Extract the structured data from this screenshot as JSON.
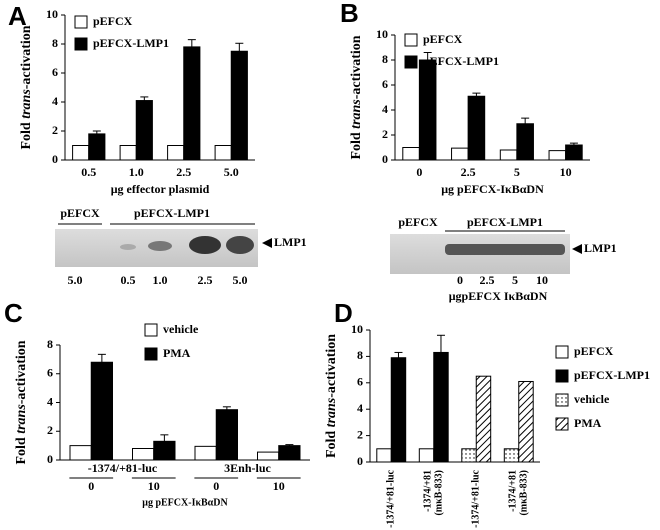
{
  "panels": [
    "A",
    "B",
    "C",
    "D"
  ],
  "chart_data": [
    {
      "type": "bar",
      "y_label": [
        "Fold ",
        "trans",
        "-activation"
      ],
      "x_label": "μg effector plasmid",
      "categories": [
        "0.5",
        "1.0",
        "2.5",
        "5.0"
      ],
      "series": [
        {
          "name": "pEFCX",
          "color": "#ffffff",
          "values": [
            1,
            1,
            1,
            1
          ]
        },
        {
          "name": "pEFCX-LMP1",
          "color": "#000000",
          "values": [
            1.8,
            4.1,
            7.8,
            7.5
          ],
          "errors": [
            0.2,
            0.25,
            0.5,
            0.55
          ]
        }
      ],
      "ylim": [
        0,
        10
      ],
      "yticks": [
        0,
        2,
        4,
        6,
        8,
        10
      ],
      "legend": "upper left"
    },
    {
      "type": "bar",
      "y_label": [
        "Fold ",
        "trans",
        "-activation"
      ],
      "x_label": "μg pEFCX-IκBαDN",
      "categories": [
        "0",
        "2.5",
        "5",
        "10"
      ],
      "series": [
        {
          "name": "pEFCX",
          "color": "#ffffff",
          "values": [
            1,
            0.95,
            0.8,
            0.75
          ]
        },
        {
          "name": "pEFCX-LMP1",
          "color": "#000000",
          "values": [
            8,
            5.1,
            2.9,
            1.2
          ],
          "errors": [
            0.6,
            0.25,
            0.45,
            0.15
          ]
        }
      ],
      "ylim": [
        0,
        10
      ],
      "yticks": [
        0,
        2,
        4,
        6,
        8,
        10
      ],
      "legend": "upper right"
    },
    {
      "type": "bar",
      "y_label": [
        "Fold ",
        "trans",
        "-activation"
      ],
      "x_label": "μg pEFCX-IκBαDN",
      "groups": [
        "-1374/+81-luc",
        "3Enh-luc"
      ],
      "categories": [
        "0",
        "10",
        "0",
        "10"
      ],
      "series": [
        {
          "name": "vehicle",
          "color": "#ffffff",
          "values": [
            1,
            0.8,
            0.95,
            0.55
          ]
        },
        {
          "name": "PMA",
          "color": "#000000",
          "values": [
            6.8,
            1.3,
            3.5,
            1.0
          ],
          "errors": [
            0.55,
            0.45,
            0.2,
            0.07
          ]
        }
      ],
      "ylim": [
        0,
        8
      ],
      "yticks": [
        0,
        2,
        4,
        6,
        8
      ],
      "legend": "upper center"
    },
    {
      "type": "bar",
      "y_label": [
        "Fold ",
        "trans",
        "-activation"
      ],
      "categories": [
        [
          "-1374/+81-luc"
        ],
        [
          "-1374/+81",
          "(mκB-833)"
        ],
        [
          "-1374/+81-luc"
        ],
        [
          "-1374/+81",
          "(mκB-833)"
        ]
      ],
      "series": [
        {
          "name": "pEFCX",
          "color": "#ffffff",
          "values": [
            1,
            1,
            null,
            null
          ]
        },
        {
          "name": "pEFCX-LMP1",
          "color": "#000000",
          "values": [
            7.9,
            8.3,
            null,
            null
          ],
          "errors": [
            0.4,
            1.3,
            null,
            null
          ]
        },
        {
          "name": "vehicle",
          "color": "#ffffff",
          "pattern": "dots",
          "values": [
            null,
            null,
            1,
            1
          ]
        },
        {
          "name": "PMA",
          "color": "#ffffff",
          "pattern": "hatch",
          "values": [
            null,
            null,
            6.5,
            6.1
          ]
        }
      ],
      "ylim": [
        0,
        10
      ],
      "yticks": [
        0,
        2,
        4,
        6,
        8,
        10
      ],
      "legend": "right"
    }
  ],
  "blot_a": {
    "groups": [
      "pEFCX",
      "pEFCX-LMP1"
    ],
    "band": "LMP1",
    "lanes": [
      "5.0",
      "0.5",
      "1.0",
      "2.5",
      "5.0"
    ]
  },
  "blot_b": {
    "groups": [
      "pEFCX",
      "pEFCX-LMP1"
    ],
    "band": "LMP1",
    "lanes": [
      "0",
      "2.5",
      "5",
      "10"
    ],
    "caption": "μgpEFCX IκBαDN"
  }
}
